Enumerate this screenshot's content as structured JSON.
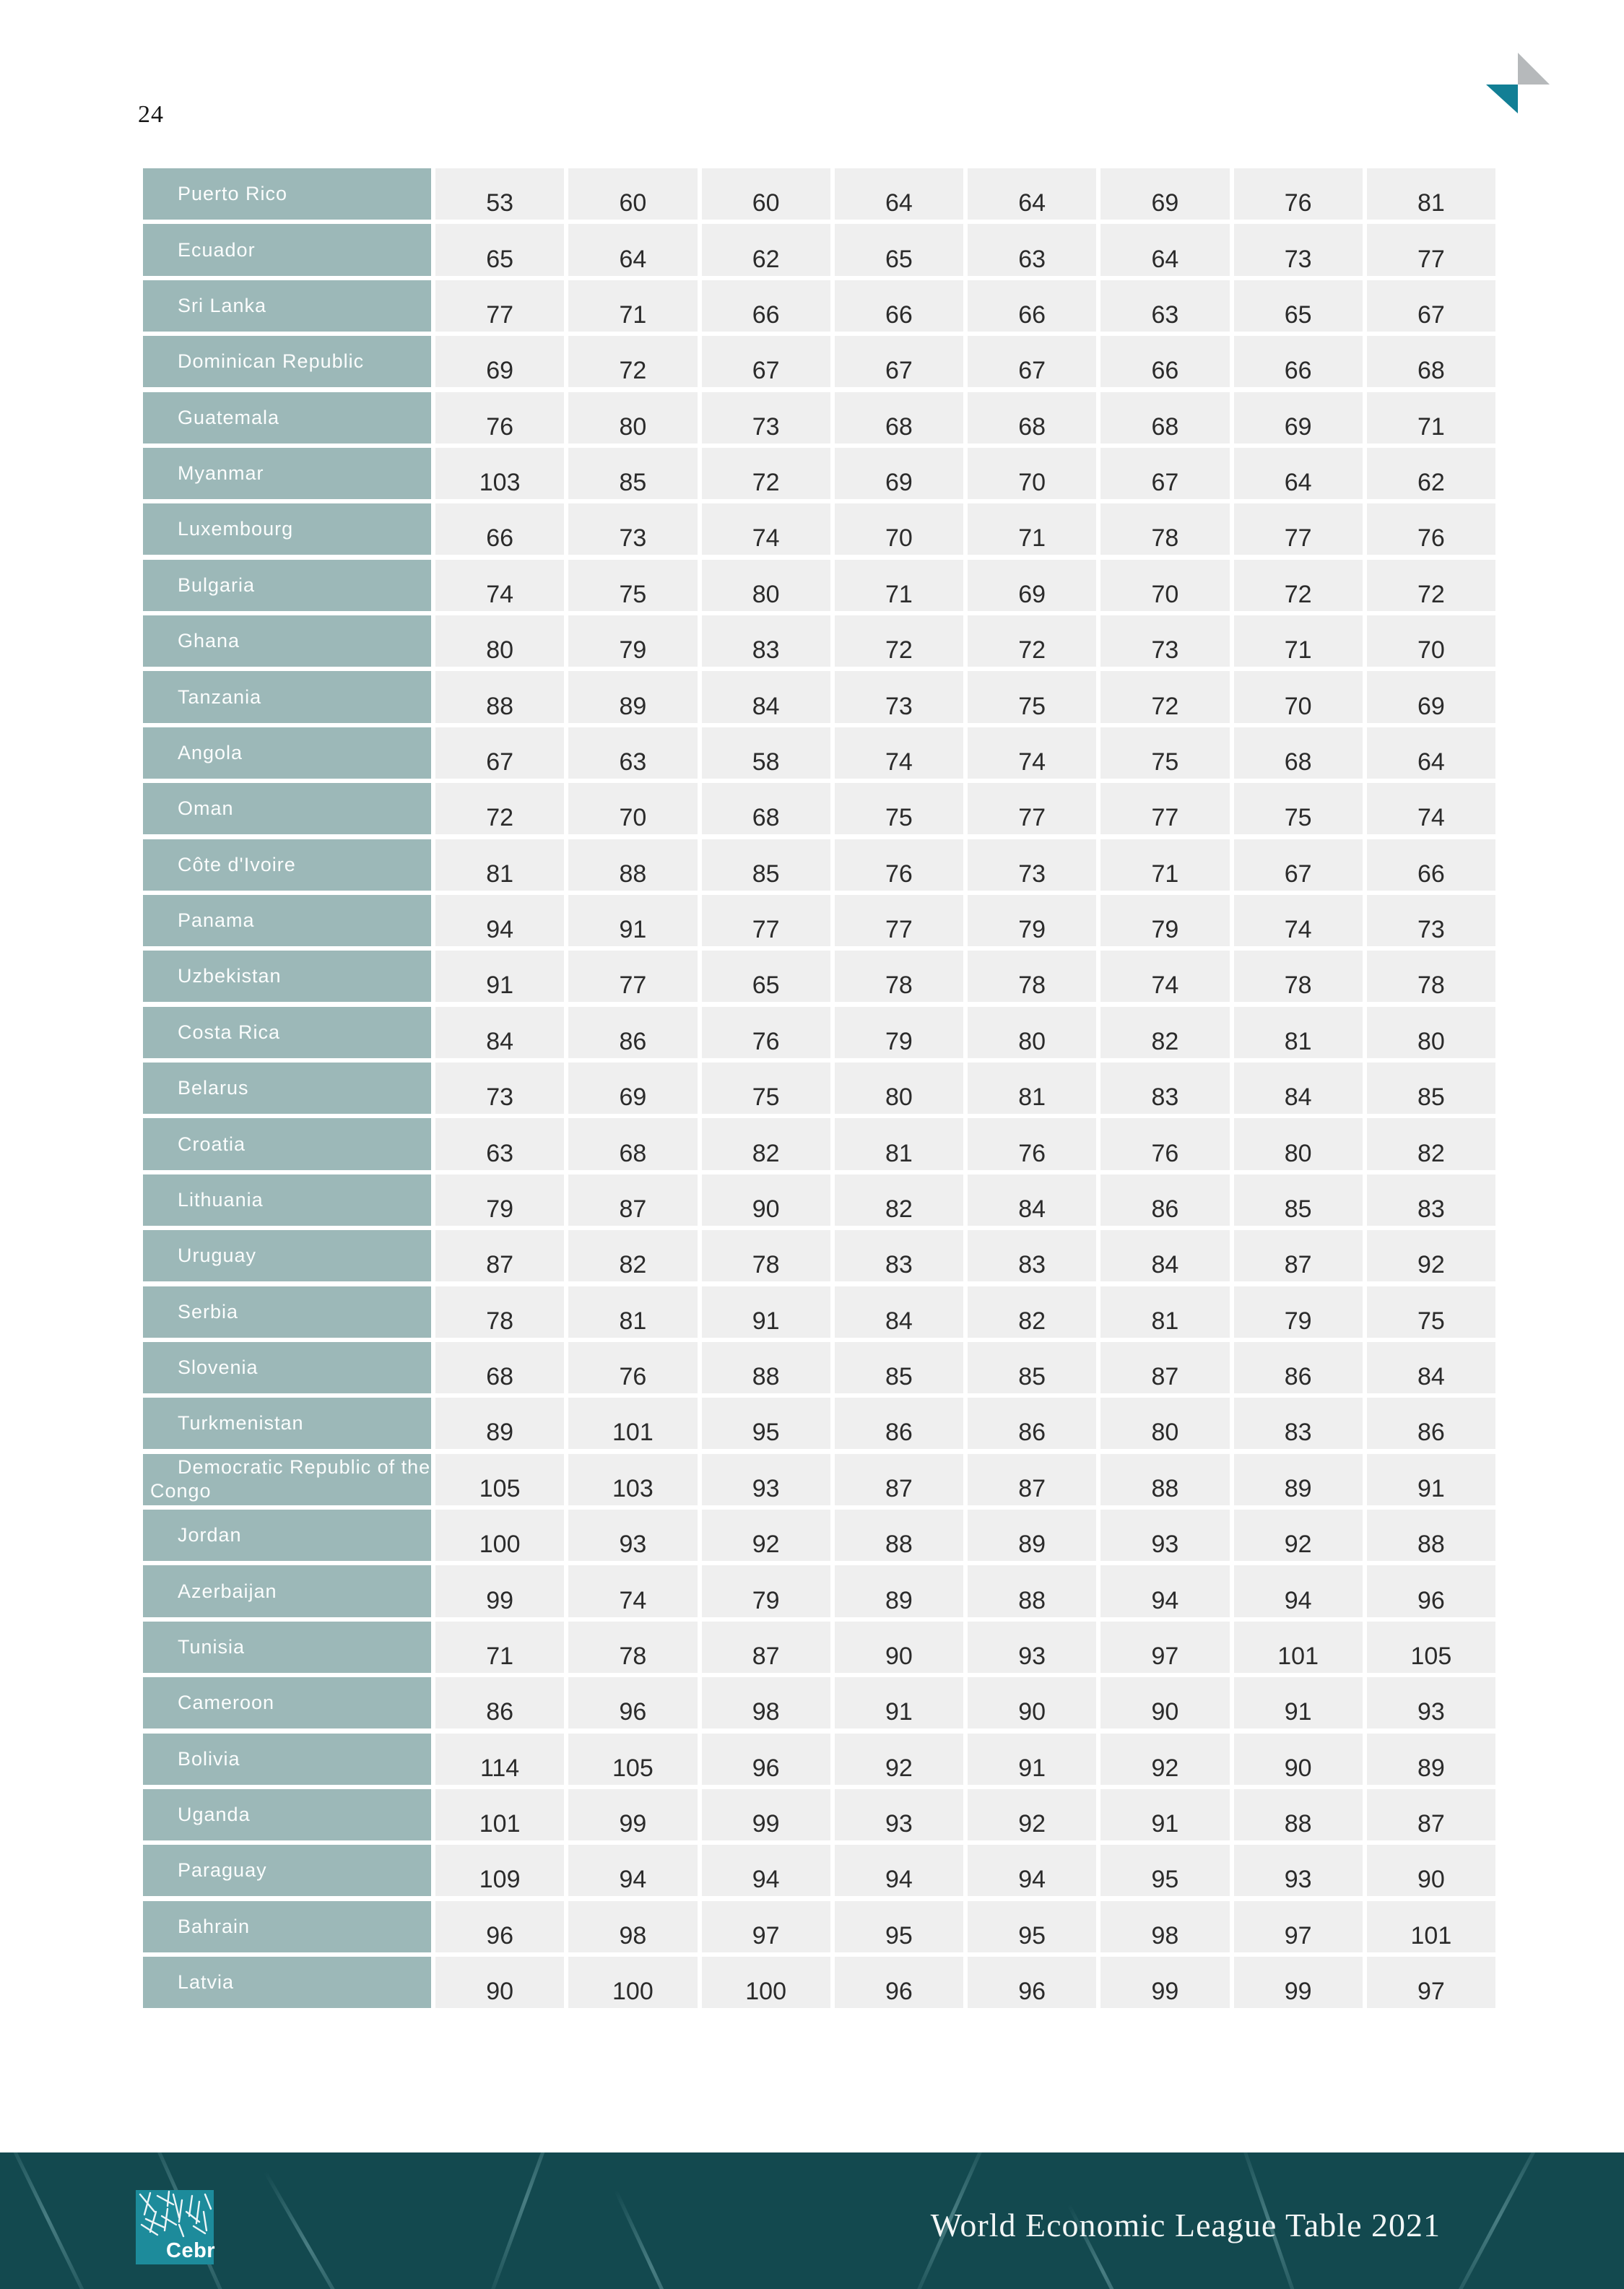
{
  "page": {
    "number": "24"
  },
  "table": {
    "rows": [
      {
        "country": "Puerto Rico",
        "values": [
          53,
          60,
          60,
          64,
          64,
          69,
          76,
          81
        ]
      },
      {
        "country": "Ecuador",
        "values": [
          65,
          64,
          62,
          65,
          63,
          64,
          73,
          77
        ]
      },
      {
        "country": "Sri Lanka",
        "values": [
          77,
          71,
          66,
          66,
          66,
          63,
          65,
          67
        ]
      },
      {
        "country": "Dominican Republic",
        "values": [
          69,
          72,
          67,
          67,
          67,
          66,
          66,
          68
        ]
      },
      {
        "country": "Guatemala",
        "values": [
          76,
          80,
          73,
          68,
          68,
          68,
          69,
          71
        ]
      },
      {
        "country": "Myanmar",
        "values": [
          103,
          85,
          72,
          69,
          70,
          67,
          64,
          62
        ]
      },
      {
        "country": "Luxembourg",
        "values": [
          66,
          73,
          74,
          70,
          71,
          78,
          77,
          76
        ]
      },
      {
        "country": "Bulgaria",
        "values": [
          74,
          75,
          80,
          71,
          69,
          70,
          72,
          72
        ]
      },
      {
        "country": "Ghana",
        "values": [
          80,
          79,
          83,
          72,
          72,
          73,
          71,
          70
        ]
      },
      {
        "country": "Tanzania",
        "values": [
          88,
          89,
          84,
          73,
          75,
          72,
          70,
          69
        ]
      },
      {
        "country": "Angola",
        "values": [
          67,
          63,
          58,
          74,
          74,
          75,
          68,
          64
        ]
      },
      {
        "country": "Oman",
        "values": [
          72,
          70,
          68,
          75,
          77,
          77,
          75,
          74
        ]
      },
      {
        "country": "Côte d'Ivoire",
        "values": [
          81,
          88,
          85,
          76,
          73,
          71,
          67,
          66
        ]
      },
      {
        "country": "Panama",
        "values": [
          94,
          91,
          77,
          77,
          79,
          79,
          74,
          73
        ]
      },
      {
        "country": "Uzbekistan",
        "values": [
          91,
          77,
          65,
          78,
          78,
          74,
          78,
          78
        ]
      },
      {
        "country": "Costa Rica",
        "values": [
          84,
          86,
          76,
          79,
          80,
          82,
          81,
          80
        ]
      },
      {
        "country": "Belarus",
        "values": [
          73,
          69,
          75,
          80,
          81,
          83,
          84,
          85
        ]
      },
      {
        "country": "Croatia",
        "values": [
          63,
          68,
          82,
          81,
          76,
          76,
          80,
          82
        ]
      },
      {
        "country": "Lithuania",
        "values": [
          79,
          87,
          90,
          82,
          84,
          86,
          85,
          83
        ]
      },
      {
        "country": "Uruguay",
        "values": [
          87,
          82,
          78,
          83,
          83,
          84,
          87,
          92
        ]
      },
      {
        "country": "Serbia",
        "values": [
          78,
          81,
          91,
          84,
          82,
          81,
          79,
          75
        ]
      },
      {
        "country": "Slovenia",
        "values": [
          68,
          76,
          88,
          85,
          85,
          87,
          86,
          84
        ]
      },
      {
        "country": "Turkmenistan",
        "values": [
          89,
          101,
          95,
          86,
          86,
          80,
          83,
          86
        ]
      },
      {
        "country": "Democratic Republic of the Congo",
        "values": [
          105,
          103,
          93,
          87,
          87,
          88,
          89,
          91
        ]
      },
      {
        "country": "Jordan",
        "values": [
          100,
          93,
          92,
          88,
          89,
          93,
          92,
          88
        ]
      },
      {
        "country": "Azerbaijan",
        "values": [
          99,
          74,
          79,
          89,
          88,
          94,
          94,
          96
        ]
      },
      {
        "country": "Tunisia",
        "values": [
          71,
          78,
          87,
          90,
          93,
          97,
          101,
          105
        ]
      },
      {
        "country": "Cameroon",
        "values": [
          86,
          96,
          98,
          91,
          90,
          90,
          91,
          93
        ]
      },
      {
        "country": "Bolivia",
        "values": [
          114,
          105,
          96,
          92,
          91,
          92,
          90,
          89
        ]
      },
      {
        "country": "Uganda",
        "values": [
          101,
          99,
          99,
          93,
          92,
          91,
          88,
          87
        ]
      },
      {
        "country": "Paraguay",
        "values": [
          109,
          94,
          94,
          94,
          94,
          95,
          93,
          90
        ]
      },
      {
        "country": "Bahrain",
        "values": [
          96,
          98,
          97,
          95,
          95,
          98,
          97,
          101
        ]
      },
      {
        "country": "Latvia",
        "values": [
          90,
          100,
          100,
          96,
          96,
          99,
          99,
          97
        ]
      }
    ]
  },
  "footer": {
    "brand": "Cebr",
    "title": "World Economic League Table 2021"
  },
  "colors": {
    "country_cell_bg": "#9cb8b8",
    "value_cell_bg": "#efefef",
    "footer_bg": "#13494f",
    "cebr_logo_bg": "#1d8b9b",
    "corner_logo_teal": "#127f95",
    "corner_logo_gray": "#b6b9bb"
  }
}
